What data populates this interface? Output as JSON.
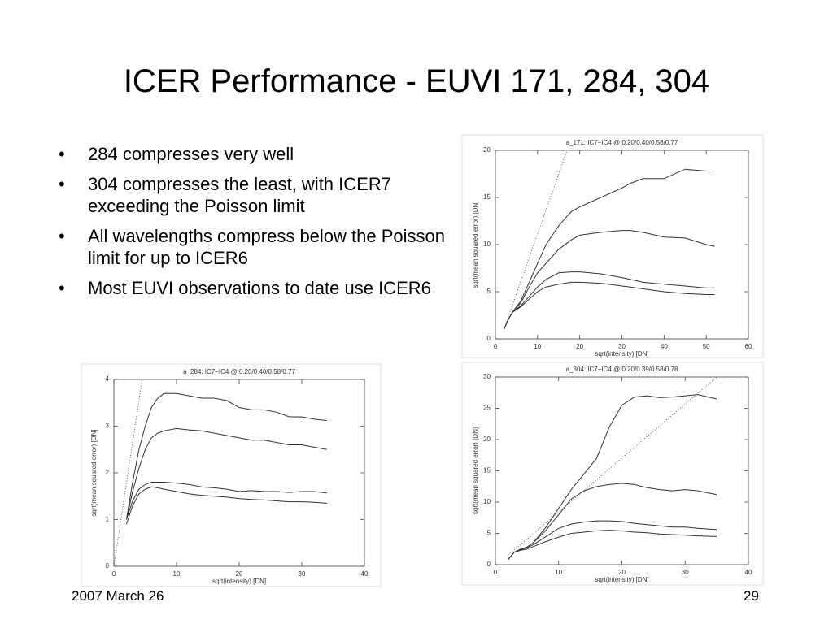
{
  "title": "ICER Performance - EUVI 171, 284, 304",
  "bullets": [
    "284 compresses very well",
    "304 compresses the least, with ICER7 exceeding the Poisson limit",
    "All wavelengths compress below the Poisson limit for up to ICER6",
    "Most EUVI observations to date use ICER6"
  ],
  "footer": {
    "date": "2007 March 26",
    "page": "29"
  },
  "chart_data": [
    {
      "type": "line",
      "title": "a_171: IC7−IC4 @ 0.20/0.40/0.58/0.77",
      "x_label": "sqrt(intensity) [DN]",
      "y_label": "sqrt(mean squared error) [DN]",
      "xlim": [
        0,
        60
      ],
      "ylim": [
        0,
        20
      ],
      "xticks": [
        0,
        10,
        20,
        30,
        40,
        50,
        60
      ],
      "yticks": [
        0,
        5,
        10,
        15,
        20
      ],
      "x": [
        2,
        3,
        4,
        6,
        8,
        10,
        12,
        15,
        18,
        20,
        25,
        30,
        32,
        35,
        40,
        45,
        50,
        52
      ],
      "series": [
        {
          "color": "#333333",
          "values": [
            1,
            2,
            2.8,
            4,
            6,
            8,
            10,
            12,
            13.5,
            14,
            15,
            16,
            16.5,
            17,
            17,
            18,
            17.8,
            17.8
          ]
        },
        {
          "color": "#333333",
          "values": [
            1,
            2,
            2.8,
            3.8,
            5.5,
            7,
            8,
            9.5,
            10.5,
            11,
            11.3,
            11.5,
            11.5,
            11.3,
            10.8,
            10.7,
            10,
            9.8
          ]
        },
        {
          "color": "#333333",
          "values": [
            1,
            2,
            2.8,
            3.5,
            4.5,
            5.5,
            6.3,
            7,
            7.1,
            7.1,
            6.9,
            6.5,
            6.3,
            6,
            5.8,
            5.6,
            5.4,
            5.4
          ]
        },
        {
          "color": "#333333",
          "values": [
            1,
            2,
            2.8,
            3.4,
            4.2,
            5,
            5.5,
            5.8,
            6,
            6,
            5.9,
            5.6,
            5.5,
            5.3,
            5,
            4.8,
            4.7,
            4.7
          ]
        },
        {
          "color": "#555555",
          "style": "dotted",
          "x": [
            2,
            17
          ],
          "values": [
            1,
            20
          ]
        }
      ]
    },
    {
      "type": "line",
      "title": "a_284: IC7−IC4 @ 0.20/0.40/0.58/0.77",
      "x_label": "sqrt(intensity) [DN]",
      "y_label": "sqrt(mean squared error) [DN]",
      "xlim": [
        0,
        40
      ],
      "ylim": [
        0,
        4
      ],
      "xticks": [
        0,
        10,
        20,
        30,
        40
      ],
      "yticks": [
        0,
        1,
        2,
        3,
        4
      ],
      "x": [
        2,
        3,
        4,
        5,
        6,
        7,
        8,
        10,
        12,
        14,
        16,
        18,
        20,
        22,
        24,
        26,
        28,
        30,
        32,
        34
      ],
      "series": [
        {
          "color": "#333333",
          "values": [
            1,
            1.8,
            2.5,
            3.0,
            3.4,
            3.6,
            3.7,
            3.7,
            3.65,
            3.6,
            3.6,
            3.55,
            3.4,
            3.35,
            3.35,
            3.3,
            3.2,
            3.2,
            3.15,
            3.12
          ]
        },
        {
          "color": "#333333",
          "values": [
            1,
            1.6,
            2.1,
            2.5,
            2.75,
            2.85,
            2.9,
            2.95,
            2.92,
            2.9,
            2.85,
            2.8,
            2.75,
            2.7,
            2.7,
            2.65,
            2.6,
            2.6,
            2.55,
            2.5
          ]
        },
        {
          "color": "#333333",
          "values": [
            1,
            1.4,
            1.65,
            1.75,
            1.8,
            1.8,
            1.8,
            1.78,
            1.75,
            1.7,
            1.68,
            1.65,
            1.6,
            1.62,
            1.6,
            1.6,
            1.58,
            1.6,
            1.6,
            1.57
          ]
        },
        {
          "color": "#333333",
          "values": [
            0.9,
            1.3,
            1.55,
            1.65,
            1.7,
            1.68,
            1.65,
            1.6,
            1.55,
            1.52,
            1.5,
            1.48,
            1.45,
            1.43,
            1.42,
            1.4,
            1.38,
            1.38,
            1.37,
            1.35
          ]
        },
        {
          "color": "#555555",
          "style": "dotted",
          "x": [
            0,
            4.5
          ],
          "values": [
            0,
            4
          ]
        }
      ]
    },
    {
      "type": "line",
      "title": "a_304: IC7−IC4 @ 0.20/0.39/0.58/0.78",
      "x_label": "sqrt(intensity) [DN]",
      "y_label": "sqrt(mean squared error) [DN]",
      "xlim": [
        0,
        40
      ],
      "ylim": [
        0,
        30
      ],
      "xticks": [
        0,
        10,
        20,
        30,
        40
      ],
      "yticks": [
        0,
        5,
        10,
        15,
        20,
        25,
        30
      ],
      "x": [
        2,
        3,
        4,
        5,
        6,
        8,
        10,
        12,
        14,
        16,
        18,
        20,
        22,
        24,
        26,
        28,
        30,
        32,
        35
      ],
      "series": [
        {
          "color": "#333333",
          "values": [
            0.8,
            2,
            2.5,
            2.8,
            3.5,
            6,
            9,
            12,
            14.5,
            17,
            22,
            25.5,
            26.8,
            27,
            26.7,
            26.8,
            27,
            27.2,
            26.5
          ]
        },
        {
          "color": "#333333",
          "values": [
            0.8,
            2,
            2.5,
            2.8,
            3.5,
            5.5,
            8,
            10.5,
            11.8,
            12.5,
            12.8,
            13,
            12.8,
            12.3,
            12,
            11.8,
            12,
            11.8,
            11.2
          ]
        },
        {
          "color": "#333333",
          "values": [
            0.8,
            2,
            2.4,
            2.7,
            3.2,
            4.5,
            5.8,
            6.5,
            6.8,
            7,
            7,
            6.9,
            6.6,
            6.4,
            6.2,
            6,
            6,
            5.8,
            5.6
          ]
        },
        {
          "color": "#333333",
          "values": [
            0.8,
            2,
            2.3,
            2.5,
            2.9,
            3.7,
            4.4,
            5,
            5.2,
            5.4,
            5.5,
            5.4,
            5.2,
            5.1,
            4.9,
            4.8,
            4.7,
            4.6,
            4.5
          ]
        },
        {
          "color": "#555555",
          "style": "dotted",
          "x": [
            2,
            35
          ],
          "values": [
            1.5,
            30
          ]
        }
      ]
    }
  ]
}
